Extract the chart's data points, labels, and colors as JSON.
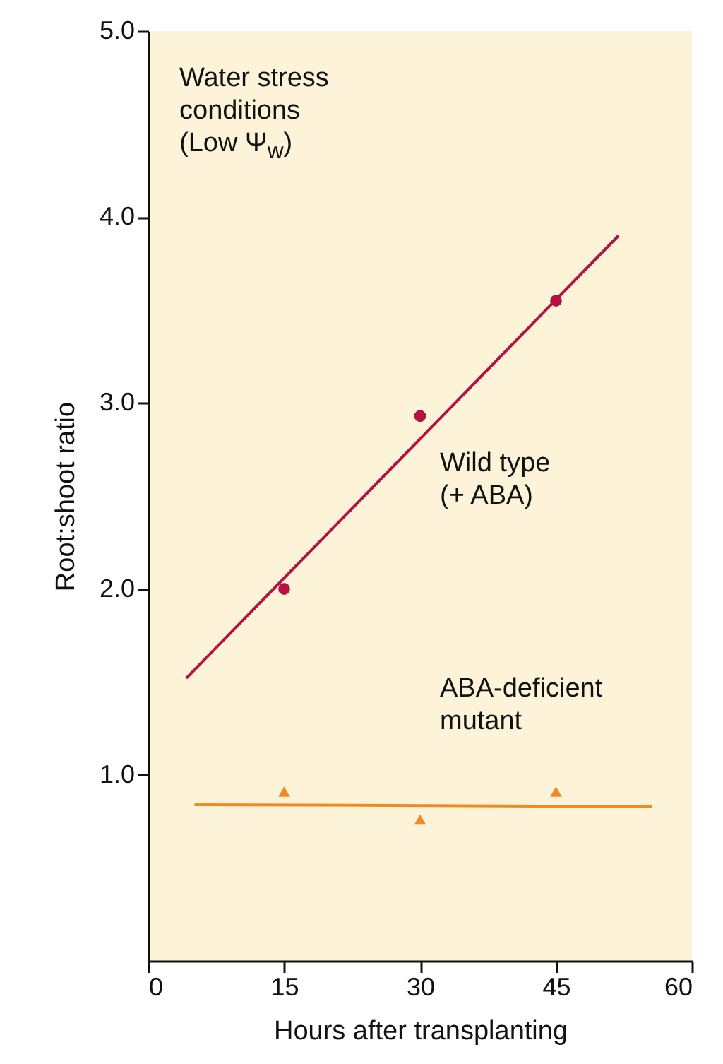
{
  "chart_data": {
    "type": "scatter",
    "xlabel": "Hours after transplanting",
    "ylabel": "Root:shoot ratio",
    "xlim": [
      0,
      60
    ],
    "ylim": [
      0,
      5
    ],
    "xticks": [
      0,
      15,
      30,
      45,
      60
    ],
    "yticks": [
      {
        "value": 1,
        "label": "1.0"
      },
      {
        "value": 2,
        "label": "2.0"
      },
      {
        "value": 3,
        "label": "3.0"
      },
      {
        "value": 4,
        "label": "4.0"
      },
      {
        "value": 5,
        "label": "5.0"
      }
    ],
    "series": [
      {
        "name": "Wild type (+ ABA)",
        "color": "#b5123f",
        "marker": "circle",
        "x": [
          15,
          30,
          45
        ],
        "values": [
          2.0,
          2.93,
          3.55
        ]
      },
      {
        "type": "line",
        "color": "#b5123f",
        "x": [
          4.2,
          51.9
        ],
        "values": [
          1.52,
          3.9
        ]
      },
      {
        "name": "ABA-deficient mutant",
        "color": "#f08a24",
        "marker": "triangle",
        "x": [
          15,
          30,
          45
        ],
        "values": [
          0.91,
          0.76,
          0.91
        ]
      },
      {
        "type": "line",
        "color": "#f08a24",
        "x": [
          5.1,
          55.6
        ],
        "values": [
          0.84,
          0.83
        ]
      }
    ],
    "annotations": [
      "Water stress conditions (Low Ψ$_{w}$)"
    ]
  }
}
